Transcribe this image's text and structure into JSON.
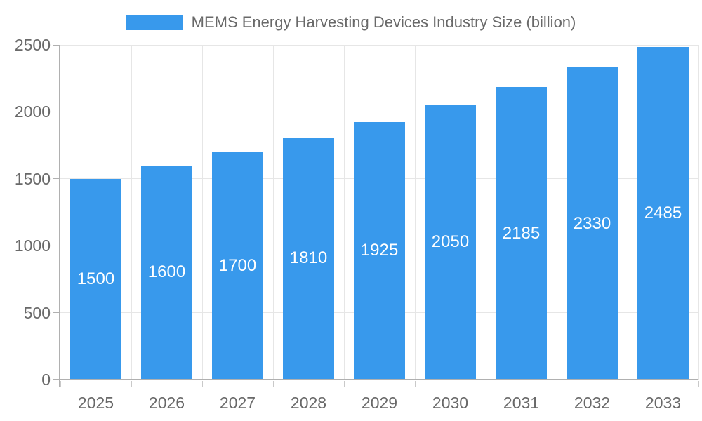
{
  "chart_data": {
    "type": "bar",
    "title": "MEMS Energy Harvesting Devices Industry Size (billion)",
    "categories": [
      "2025",
      "2026",
      "2027",
      "2028",
      "2029",
      "2030",
      "2031",
      "2032",
      "2033"
    ],
    "series": [
      {
        "name": "MEMS Energy Harvesting Devices Industry Size (billion)",
        "values": [
          1500,
          1600,
          1700,
          1810,
          1925,
          2050,
          2185,
          2330,
          2485
        ]
      }
    ],
    "xlabel": "",
    "ylabel": "",
    "ylim": [
      0,
      2500
    ],
    "yticks": [
      0,
      500,
      1000,
      1500,
      2000,
      2500
    ],
    "grid": true,
    "legend_position": "top",
    "colors": {
      "bar": "#3899ec",
      "grid_line": "#e6e6e6",
      "axis_line": "#b0b0b0",
      "axis_text": "#696969",
      "value_text": "#ffffff",
      "background": "#ffffff"
    }
  }
}
